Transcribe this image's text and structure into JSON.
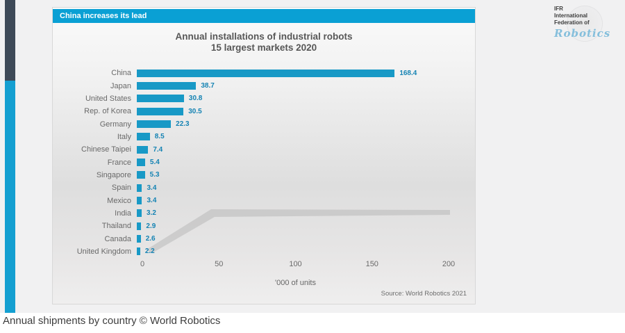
{
  "colors": {
    "band_bg": "#0aa0d4",
    "bar": "#1899c6",
    "value_text": "#1583b3",
    "stripe_dark": "#3e4a58",
    "stripe_blue": "#149fd1"
  },
  "band": {
    "label": "China increases its lead"
  },
  "title": {
    "line1": "Annual installations of industrial robots",
    "line2": "15 largest markets 2020"
  },
  "chart_data": {
    "type": "bar",
    "orientation": "horizontal",
    "title": "Annual installations of industrial robots 15 largest markets 2020",
    "categories": [
      "China",
      "Japan",
      "United States",
      "Rep. of Korea",
      "Germany",
      "Italy",
      "Chinese Taipei",
      "France",
      "Singapore",
      "Spain",
      "Mexico",
      "India",
      "Thailand",
      "Canada",
      "United Kingdom"
    ],
    "values": [
      168.4,
      38.7,
      30.8,
      30.5,
      22.3,
      8.5,
      7.4,
      5.4,
      5.3,
      3.4,
      3.4,
      3.2,
      2.9,
      2.6,
      2.2
    ],
    "xlabel": "'000 of units",
    "ylabel": "",
    "xlim": [
      0,
      200
    ],
    "xticks": [
      0,
      50,
      100,
      150,
      200
    ],
    "grid": false,
    "value_labels_shown": true
  },
  "source": {
    "text": "Source: World Robotics 2021"
  },
  "logo": {
    "line1": "IFR",
    "line2": "International",
    "line3": "Federation of",
    "script": "Robotics"
  },
  "caption": {
    "text": "Annual shipments by country © World Robotics"
  }
}
